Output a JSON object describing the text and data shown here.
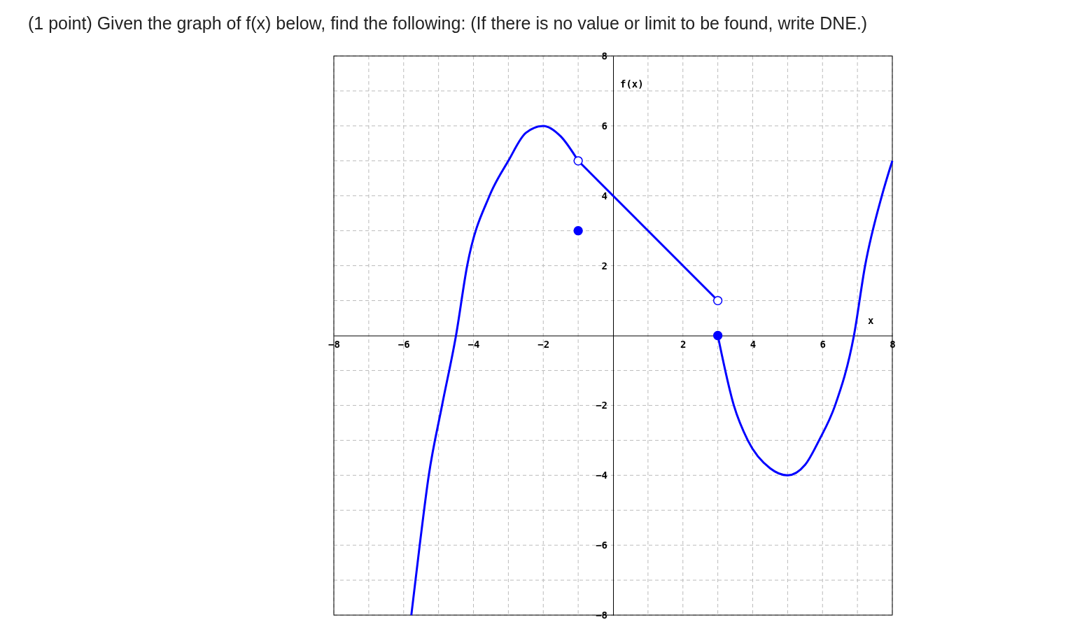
{
  "chart_data": {
    "type": "line",
    "title": "(1 point) Given the graph of f(x) below, find the following: (If there is no value or limit to be found, write DNE.)",
    "xlabel": "x",
    "ylabel": "f(x)",
    "xlim": [
      -8,
      8
    ],
    "ylim": [
      -8,
      8
    ],
    "xticks": [
      -8,
      {
        "value": -7,
        "label": null
      },
      -6,
      {
        "value": -5,
        "label": null
      },
      -4,
      {
        "value": -3,
        "label": null
      },
      -2,
      {
        "value": -1,
        "label": null
      },
      {
        "value": 1,
        "label": null
      },
      2,
      {
        "value": 3,
        "label": null
      },
      4,
      {
        "value": 5,
        "label": null
      },
      6,
      {
        "value": 7,
        "label": null
      },
      8
    ],
    "yticks": [
      -8,
      {
        "value": -7,
        "label": null
      },
      -6,
      {
        "value": -5,
        "label": null
      },
      -4,
      {
        "value": -3,
        "label": null
      },
      -2,
      {
        "value": -1,
        "label": null
      },
      {
        "value": 1,
        "label": null
      },
      2,
      {
        "value": 3,
        "label": null
      },
      4,
      {
        "value": 5,
        "label": null
      },
      6,
      {
        "value": 7,
        "label": null
      },
      8
    ],
    "grid": true,
    "line_style": "solid",
    "series": [
      {
        "color": "#0000ff",
        "x": [
          -5.78,
          -5.54,
          -5.28,
          -4.9,
          -4.5,
          -4.18,
          -3.54,
          -3.0,
          -2.5,
          -2,
          -1.5,
          -1
        ],
        "values": [
          -8,
          -6,
          -4,
          -2,
          0,
          2,
          4,
          5,
          5.8,
          6,
          5.7,
          5
        ]
      },
      {
        "color": "#0000ff",
        "x": [
          -1,
          3
        ],
        "values": [
          5,
          1
        ]
      },
      {
        "color": "#0000ff",
        "x": [
          3,
          3.46,
          3.86,
          4.5,
          5,
          5.5,
          5.9,
          6.36,
          6.9,
          7.22,
          7.7,
          8
        ],
        "values": [
          0,
          -2,
          -3,
          -3.8,
          -4,
          -3.7,
          -3,
          -2,
          0,
          2,
          4,
          5
        ]
      },
      {
        "type": "scatter",
        "marker": "circle",
        "color": "#0000ff",
        "x": [
          -1,
          3
        ],
        "values": [
          3,
          0
        ]
      },
      {
        "type": "scatter",
        "marker": "circle",
        "color": "#ffffff",
        "x": [
          -1,
          3
        ],
        "values": [
          5,
          1
        ]
      }
    ]
  }
}
